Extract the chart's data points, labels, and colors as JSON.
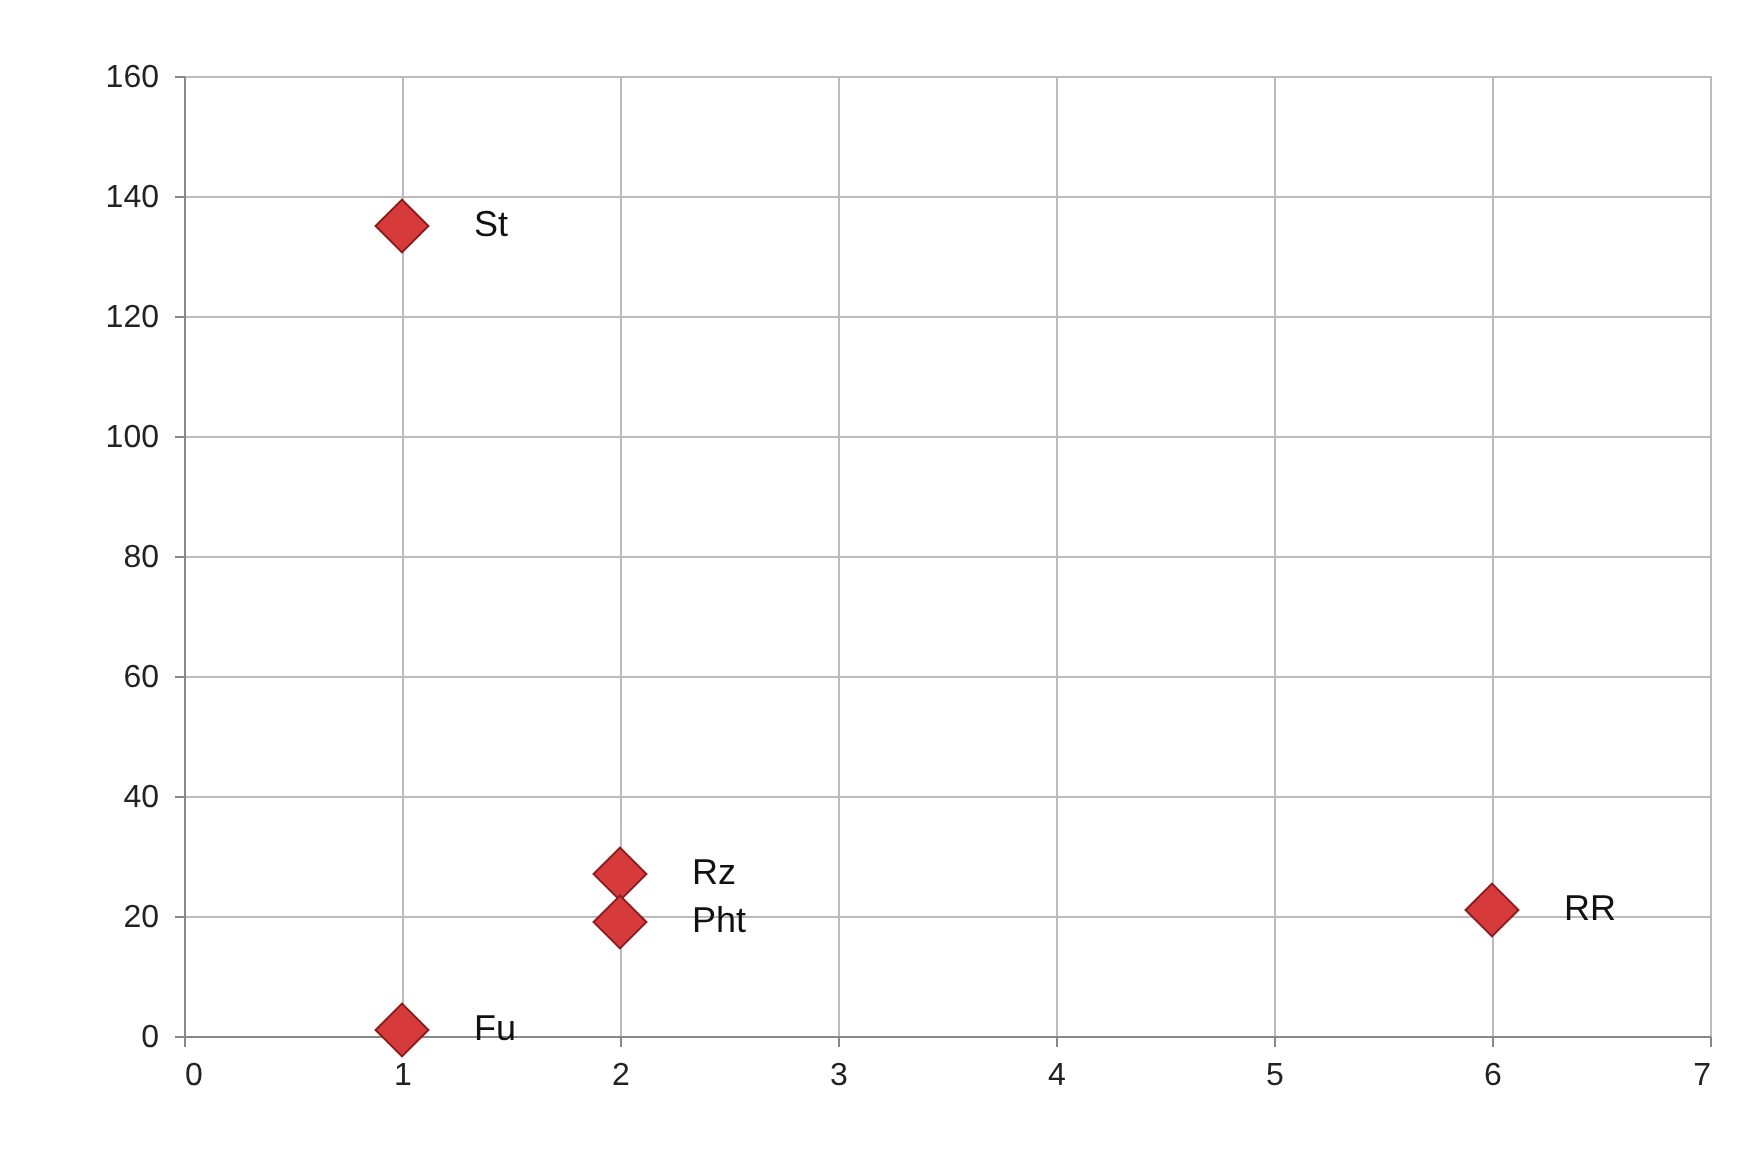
{
  "chart_data": {
    "type": "scatter",
    "x": [
      1,
      2,
      2,
      6,
      1
    ],
    "series": [
      {
        "color": "#d63a3a",
        "values": [
          135,
          27,
          19,
          21,
          1
        ]
      }
    ],
    "annotations": [
      {
        "text": "St",
        "x": 1,
        "y": 135
      },
      {
        "text": "Rz",
        "x": 2,
        "y": 27
      },
      {
        "text": "Pht",
        "x": 2,
        "y": 19
      },
      {
        "text": "RR",
        "x": 6,
        "y": 21
      },
      {
        "text": "Fu",
        "x": 1,
        "y": 1
      }
    ],
    "xlim": [
      0,
      7
    ],
    "xticks": [
      0,
      1,
      2,
      3,
      4,
      5,
      6,
      7
    ],
    "ylim": [
      0,
      160
    ],
    "yticks": [
      0,
      20,
      40,
      60,
      80,
      100,
      120,
      140,
      160
    ],
    "grid": true,
    "marker": "diamond"
  }
}
